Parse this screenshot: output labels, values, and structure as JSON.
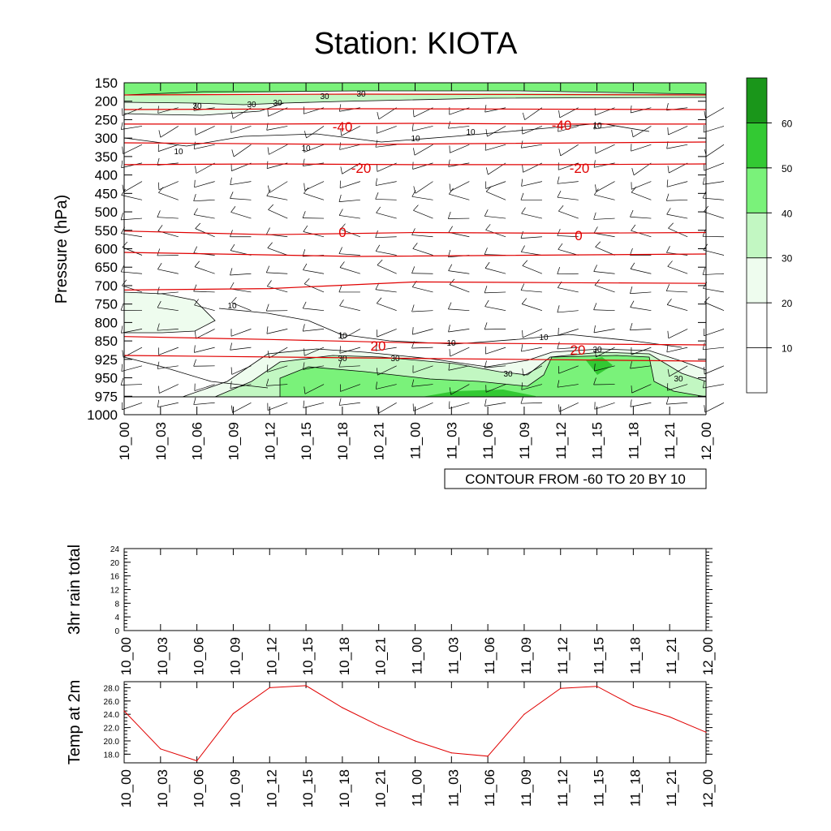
{
  "title": "Station: KIOTA",
  "time_labels": [
    "10_00",
    "10_03",
    "10_06",
    "10_09",
    "10_12",
    "10_15",
    "10_18",
    "10_21",
    "11_00",
    "11_03",
    "11_06",
    "11_09",
    "11_12",
    "11_15",
    "11_18",
    "11_21",
    "12_00"
  ],
  "chart_data": [
    {
      "type": "heatmap",
      "name": "cross-section",
      "ylabel": "Pressure (hPa)",
      "pressure_levels": [
        150,
        200,
        250,
        300,
        350,
        400,
        450,
        500,
        550,
        600,
        650,
        700,
        750,
        800,
        850,
        925,
        950,
        975,
        1000
      ],
      "info_label": "CONTOUR FROM -60 TO 20 BY 10",
      "colorbar": {
        "levels": [
          "10",
          "20",
          "30",
          "40",
          "50",
          "60"
        ],
        "colors": [
          "#ffffff",
          "#ffffff",
          "#eefcee",
          "#c2f7c2",
          "#7af27a",
          "#33c933",
          "#1a961a"
        ]
      },
      "temperature_contour_labels": [
        "-40",
        "-40",
        "-20",
        "-20",
        "0",
        "0",
        "20",
        "20"
      ],
      "humidity_contour_labels": [
        "30",
        "30",
        "30",
        "30",
        "30",
        "10",
        "10",
        "10",
        "10",
        "10",
        "10",
        "10",
        "10",
        "10",
        "30",
        "30",
        "30",
        "30",
        "30"
      ],
      "temperature_isotherms": [
        {
          "value": -40,
          "pressure": [
            262,
            262,
            260,
            262,
            262
          ]
        },
        {
          "value": -20,
          "pressure": [
            372,
            370,
            372,
            372,
            370
          ]
        },
        {
          "value": 0,
          "pressure": [
            552,
            562,
            556,
            558,
            556
          ]
        },
        {
          "value": 10,
          "pressure": [
            712,
            708,
            690,
            692,
            694
          ]
        },
        {
          "value": 20,
          "pressure": [
            838,
            846,
            858,
            862,
            866
          ]
        }
      ]
    },
    {
      "type": "line",
      "name": "rain",
      "ylabel": "3hr rain total",
      "yticks": [
        "0",
        "4",
        "8",
        "12",
        "16",
        "20",
        "24"
      ],
      "ylim": [
        0,
        24
      ],
      "values": [
        0,
        0,
        0,
        0,
        0,
        0,
        0,
        0,
        0,
        0,
        0,
        0,
        0,
        0,
        0,
        0,
        0
      ]
    },
    {
      "type": "line",
      "name": "temp-2m",
      "ylabel": "Temp at 2m",
      "yticks": [
        "18.0",
        "20.0",
        "22.0",
        "24.0",
        "26.0",
        "28.0"
      ],
      "ylim": [
        16.7,
        28.9
      ],
      "line_color": "#e00000",
      "values": [
        24.5,
        18.8,
        17.0,
        24.1,
        28.0,
        28.3,
        25.0,
        22.3,
        20.0,
        18.2,
        17.7,
        24.0,
        27.9,
        28.2,
        25.3,
        23.6,
        21.3
      ]
    }
  ]
}
